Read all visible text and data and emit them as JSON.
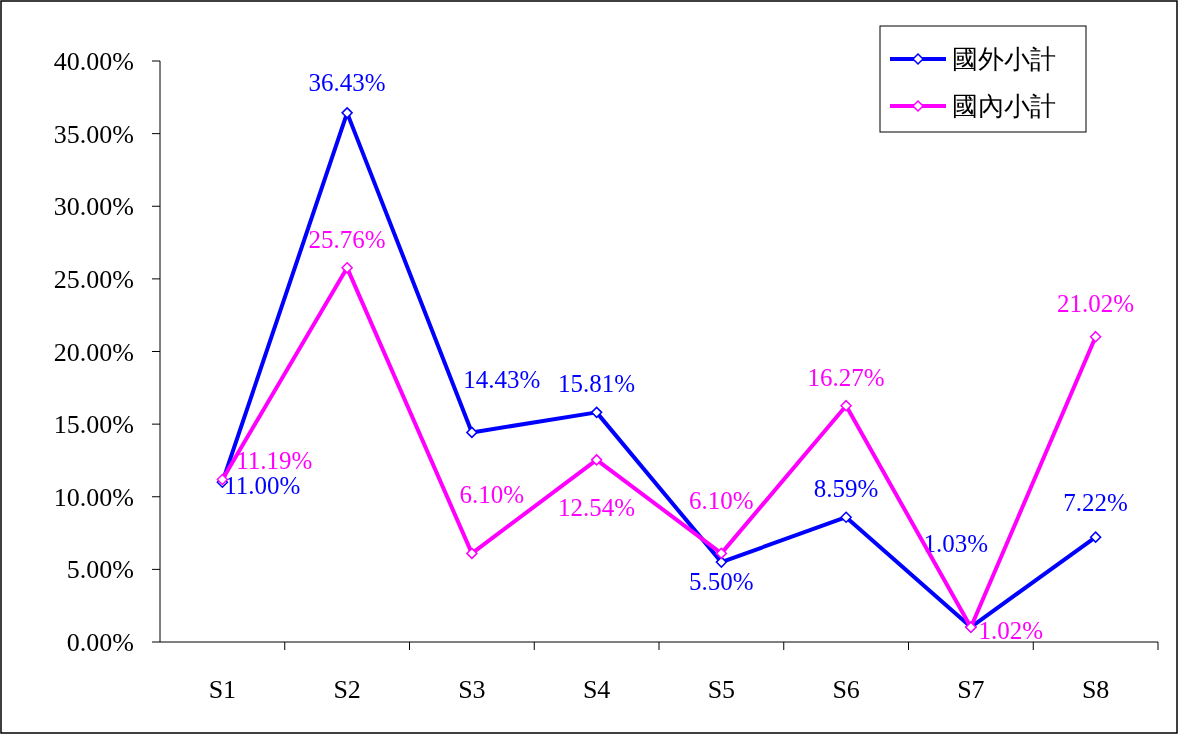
{
  "chart_data": {
    "type": "line",
    "categories": [
      "S1",
      "S2",
      "S3",
      "S4",
      "S5",
      "S6",
      "S7",
      "S8"
    ],
    "series": [
      {
        "name": "國外小計",
        "color": "#0000ff",
        "values": [
          11.0,
          36.43,
          14.43,
          15.81,
          5.5,
          8.59,
          1.03,
          7.22
        ],
        "value_labels": [
          "11.00%",
          "36.43%",
          "14.43%",
          "15.81%",
          "5.50%",
          "8.59%",
          "1.03%",
          "7.22%"
        ]
      },
      {
        "name": "國內小計",
        "color": "#ff00ff",
        "values": [
          11.19,
          25.76,
          6.1,
          12.54,
          6.1,
          16.27,
          1.02,
          21.02
        ],
        "value_labels": [
          "11.19%",
          "25.76%",
          "6.10%",
          "12.54%",
          "6.10%",
          "16.27%",
          "1.02%",
          "21.02%"
        ]
      }
    ],
    "ylim": [
      0,
      40
    ],
    "yticks": [
      {
        "value": 0,
        "label": "0.00%"
      },
      {
        "value": 5,
        "label": "5.00%"
      },
      {
        "value": 10,
        "label": "10.00%"
      },
      {
        "value": 15,
        "label": "15.00%"
      },
      {
        "value": 20,
        "label": "20.00%"
      },
      {
        "value": 25,
        "label": "25.00%"
      },
      {
        "value": 30,
        "label": "30.00%"
      },
      {
        "value": 35,
        "label": "35.00%"
      },
      {
        "value": 40,
        "label": "40.00%"
      }
    ],
    "grid": false,
    "legend": "top right",
    "marker": "diamond",
    "line_style": "solid"
  }
}
